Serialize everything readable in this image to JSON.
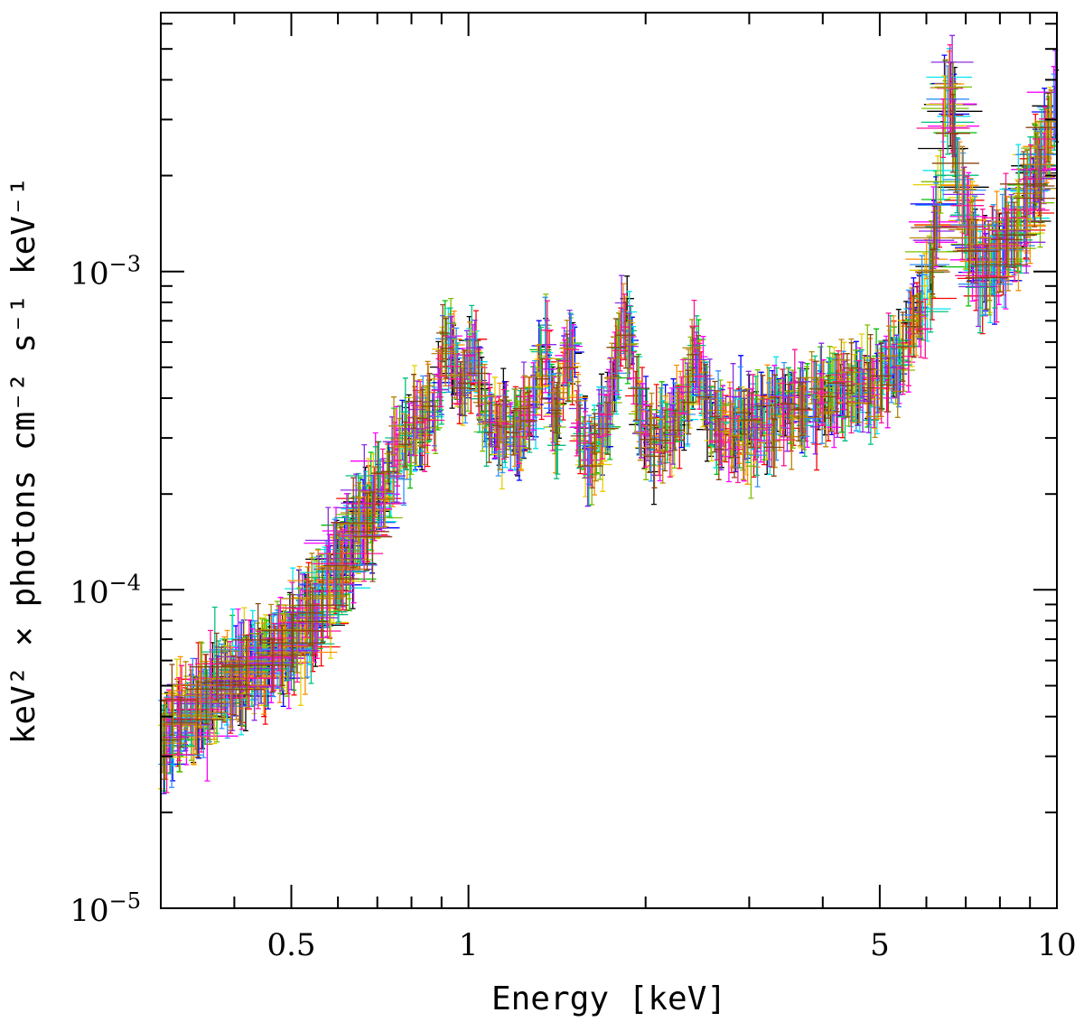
{
  "chart_data": {
    "type": "scatter",
    "title": "",
    "xlabel": "Energy [keV]",
    "ylabel": "keV² × photons cm⁻² s⁻¹ keV⁻¹",
    "xscale": "log",
    "yscale": "log",
    "xlim": [
      0.3,
      10
    ],
    "ylim": [
      1e-05,
      0.0065
    ],
    "x_ticks": [
      {
        "value": 0.5,
        "label": "0.5"
      },
      {
        "value": 1,
        "label": "1"
      },
      {
        "value": 5,
        "label": "5"
      },
      {
        "value": 10,
        "label": "10"
      }
    ],
    "y_ticks": [
      {
        "value": 1e-05,
        "base": "10",
        "exp": "−5"
      },
      {
        "value": 0.0001,
        "base": "10",
        "exp": "−4"
      },
      {
        "value": 0.001,
        "base": "10",
        "exp": "−3"
      }
    ],
    "series_colors": [
      "#000000",
      "#ff0000",
      "#00c000",
      "#0000ff",
      "#00e5ee",
      "#ff00ff",
      "#e5d000",
      "#ff8c00",
      "#7fbf00",
      "#00c080",
      "#3090ff",
      "#8a2be2",
      "#ff1493",
      "#b8860b",
      "#8b4513"
    ],
    "spectrum_points": [
      [
        0.3,
        3.3e-05
      ],
      [
        0.35,
        4.3e-05
      ],
      [
        0.4,
        5.2e-05
      ],
      [
        0.45,
        5.8e-05
      ],
      [
        0.5,
        6.8e-05
      ],
      [
        0.55,
        8.6e-05
      ],
      [
        0.6,
        0.000115
      ],
      [
        0.65,
        0.000158
      ],
      [
        0.7,
        0.0002
      ],
      [
        0.75,
        0.000265
      ],
      [
        0.8,
        0.000315
      ],
      [
        0.85,
        0.00035
      ],
      [
        0.9,
        0.000405
      ],
      [
        0.95,
        0.00046
      ],
      [
        1.0,
        0.00041
      ],
      [
        1.05,
        0.00037
      ],
      [
        1.1,
        0.00033
      ],
      [
        1.2,
        0.00031
      ],
      [
        1.3,
        0.00037
      ],
      [
        1.35,
        0.00042
      ],
      [
        1.4,
        0.00032
      ],
      [
        1.5,
        0.00041
      ],
      [
        1.6,
        0.00027
      ],
      [
        1.7,
        0.00031
      ],
      [
        1.8,
        0.00052
      ],
      [
        1.9,
        0.00047
      ],
      [
        2.0,
        0.0003
      ],
      [
        2.2,
        0.00032
      ],
      [
        2.4,
        0.00041
      ],
      [
        2.6,
        0.00033
      ],
      [
        3.0,
        0.00032
      ],
      [
        3.5,
        0.00036
      ],
      [
        4.0,
        0.00041
      ],
      [
        4.5,
        0.00043
      ],
      [
        5.0,
        0.00046
      ],
      [
        5.5,
        0.00055
      ],
      [
        6.0,
        0.00085
      ],
      [
        6.3,
        0.0016
      ],
      [
        6.5,
        0.0033
      ],
      [
        6.7,
        0.0025
      ],
      [
        7.0,
        0.0014
      ],
      [
        7.5,
        0.00095
      ],
      [
        8.0,
        0.0011
      ],
      [
        8.5,
        0.0014
      ],
      [
        9.0,
        0.0017
      ],
      [
        9.5,
        0.0024
      ],
      [
        10.0,
        0.0031
      ]
    ],
    "line_features": [
      {
        "energy": 0.92,
        "height": 1.45
      },
      {
        "energy": 1.02,
        "height": 1.35
      },
      {
        "energy": 1.35,
        "height": 1.4
      },
      {
        "energy": 1.48,
        "height": 1.45
      },
      {
        "energy": 1.85,
        "height": 1.35
      },
      {
        "energy": 2.45,
        "height": 1.35
      },
      {
        "energy": 6.6,
        "height": 1.2
      }
    ],
    "n_series": 15,
    "points_per_series": 95,
    "scatter_dex": 0.1,
    "legend": "none",
    "grid": false
  }
}
